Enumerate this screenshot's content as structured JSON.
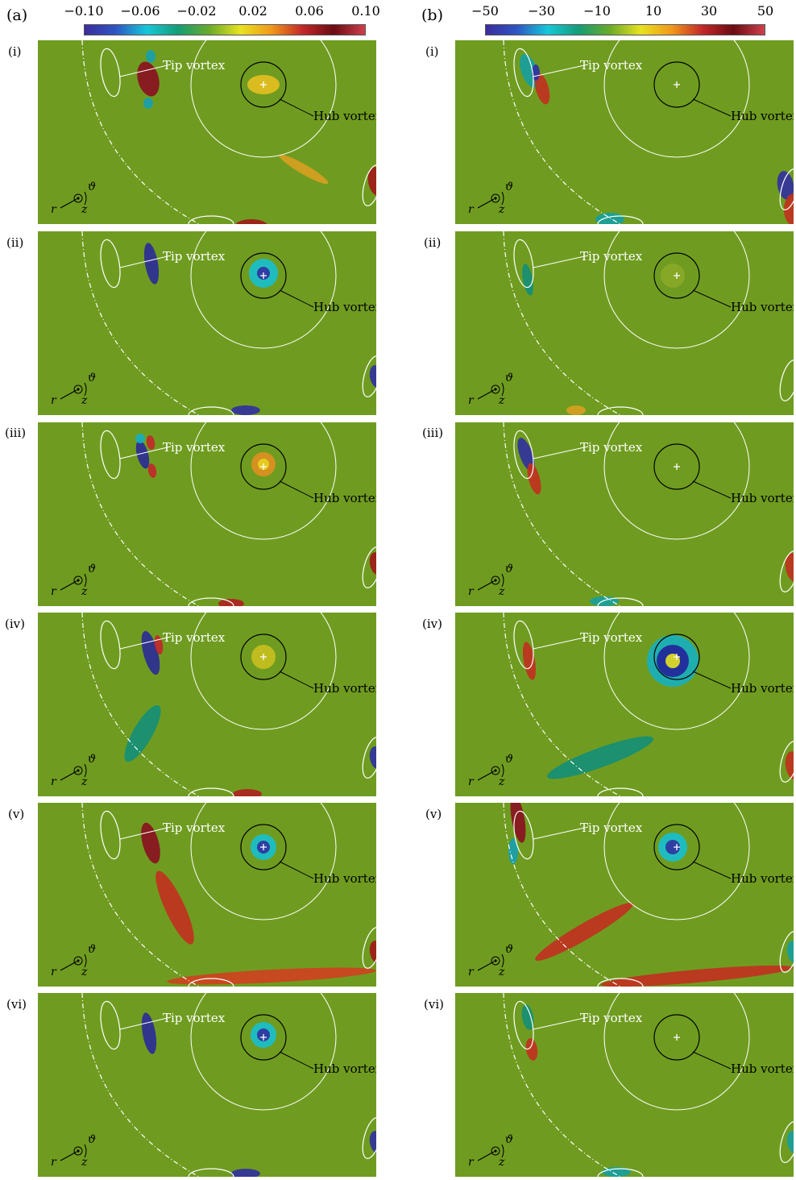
{
  "column_a": {
    "label": "(a)",
    "colorbar_ticks": [
      "−0.10",
      "−0.06",
      "−0.02",
      "0.02",
      "0.06",
      "0.10"
    ]
  },
  "column_b": {
    "label": "(b)",
    "colorbar_ticks": [
      "−50",
      "−30",
      "−10",
      "10",
      "30",
      "50"
    ]
  },
  "colormap": [
    "#3b2d9c",
    "#2f55c4",
    "#16c8d8",
    "#159c76",
    "#6aaa2a",
    "#e8e320",
    "#f0981a",
    "#c2272a",
    "#6a0c14",
    "#d0404c"
  ],
  "panel_background": "#6f9c20",
  "rows": [
    {
      "label": "(i)"
    },
    {
      "label": "(ii)"
    },
    {
      "label": "(iii)"
    },
    {
      "label": "(iv)"
    },
    {
      "label": "(v)"
    },
    {
      "label": "(vi)"
    }
  ],
  "annotations": {
    "tip_vortex": "Tip vortex",
    "hub_vortex": "Hub vortex",
    "axis_r": "r",
    "axis_z": "z",
    "axis_theta": "ϑ"
  }
}
